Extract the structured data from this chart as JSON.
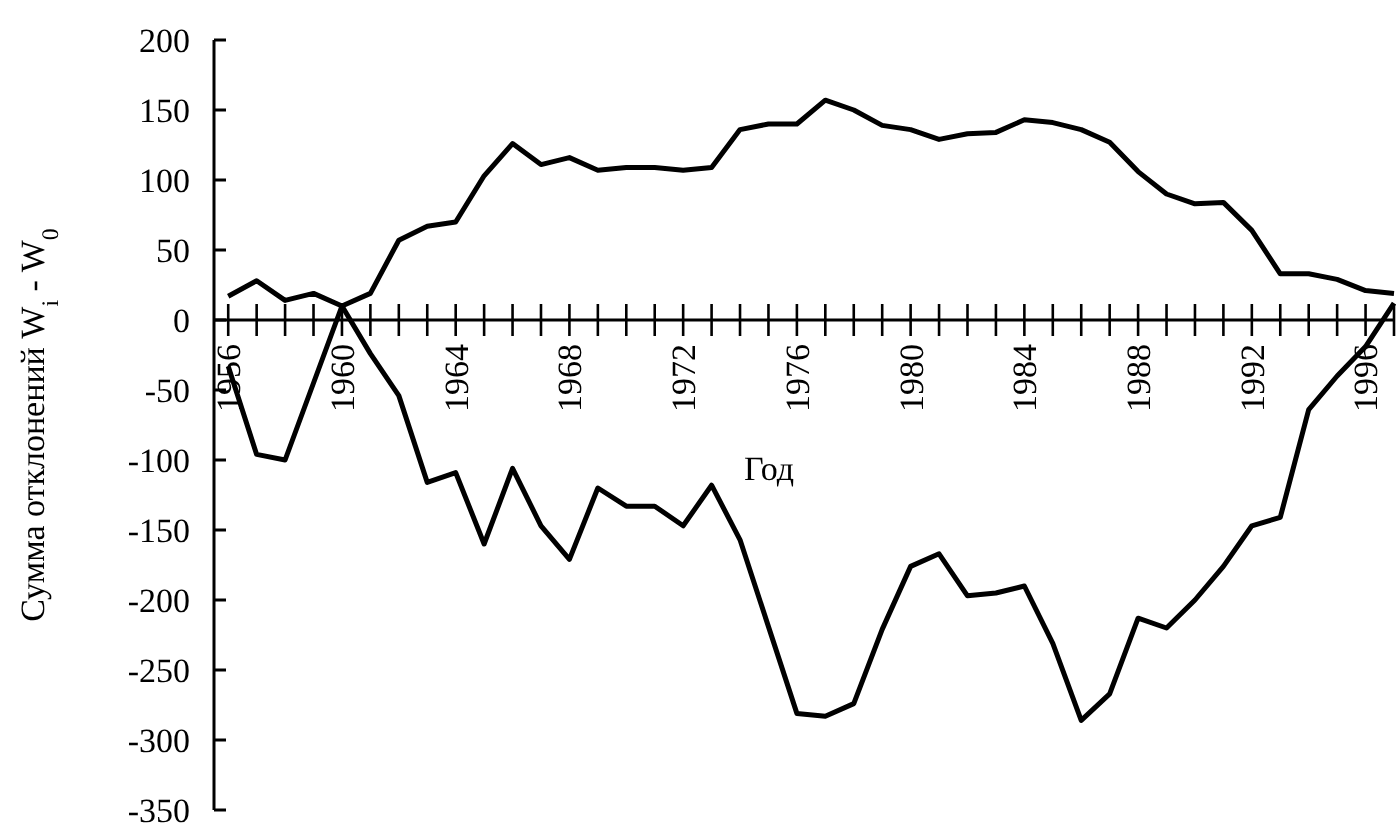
{
  "chart_data": {
    "type": "line",
    "xlabel": "Год",
    "ylabel": "Сумма отклонений W$_{i}$ - W$_{0}$",
    "x": [
      1956,
      1957,
      1958,
      1959,
      1960,
      1961,
      1962,
      1963,
      1964,
      1965,
      1966,
      1967,
      1968,
      1969,
      1970,
      1971,
      1972,
      1973,
      1974,
      1975,
      1976,
      1977,
      1978,
      1979,
      1980,
      1981,
      1982,
      1983,
      1984,
      1985,
      1986,
      1987,
      1988,
      1989,
      1990,
      1991,
      1992,
      1993,
      1994,
      1995,
      1996,
      1997
    ],
    "series": [
      {
        "color": "#000000",
        "values": [
          17,
          28,
          14,
          19,
          10,
          19,
          57,
          67,
          70,
          103,
          126,
          111,
          116,
          107,
          109,
          109,
          107,
          109,
          136,
          140,
          140,
          157,
          150,
          139,
          136,
          129,
          133,
          134,
          143,
          141,
          136,
          127,
          106,
          90,
          83,
          84,
          64,
          33,
          33,
          29,
          21,
          19
        ]
      },
      {
        "color": "#000000",
        "values": [
          -33,
          -96,
          -100,
          -45,
          10,
          -24,
          -54,
          -116,
          -109,
          -160,
          -106,
          -147,
          -171,
          -120,
          -133,
          -133,
          -147,
          -118,
          -157,
          -219,
          -281,
          -283,
          -274,
          -221,
          -176,
          -167,
          -197,
          -195,
          -190,
          -231,
          -286,
          -267,
          -213,
          -220,
          -200,
          -176,
          -147,
          -141,
          -64,
          -40,
          -19,
          12
        ]
      }
    ],
    "xlim": [
      1955.5,
      1997
    ],
    "xticks": [
      1956,
      {
        "value": 1957,
        "label": null
      },
      {
        "value": 1958,
        "label": null
      },
      {
        "value": 1959,
        "label": null
      },
      1960,
      {
        "value": 1961,
        "label": null
      },
      {
        "value": 1962,
        "label": null
      },
      {
        "value": 1963,
        "label": null
      },
      1964,
      {
        "value": 1965,
        "label": null
      },
      {
        "value": 1966,
        "label": null
      },
      {
        "value": 1967,
        "label": null
      },
      1968,
      {
        "value": 1969,
        "label": null
      },
      {
        "value": 1970,
        "label": null
      },
      {
        "value": 1971,
        "label": null
      },
      1972,
      {
        "value": 1973,
        "label": null
      },
      {
        "value": 1974,
        "label": null
      },
      {
        "value": 1975,
        "label": null
      },
      1976,
      {
        "value": 1977,
        "label": null
      },
      {
        "value": 1978,
        "label": null
      },
      {
        "value": 1979,
        "label": null
      },
      1980,
      {
        "value": 1981,
        "label": null
      },
      {
        "value": 1982,
        "label": null
      },
      {
        "value": 1983,
        "label": null
      },
      1984,
      {
        "value": 1985,
        "label": null
      },
      {
        "value": 1986,
        "label": null
      },
      {
        "value": 1987,
        "label": null
      },
      1988,
      {
        "value": 1989,
        "label": null
      },
      {
        "value": 1990,
        "label": null
      },
      {
        "value": 1991,
        "label": null
      },
      1992,
      {
        "value": 1993,
        "label": null
      },
      {
        "value": 1994,
        "label": null
      },
      {
        "value": 1995,
        "label": null
      },
      1996,
      {
        "value": 1997,
        "label": null
      }
    ],
    "ylim": [
      -350,
      200
    ],
    "yticks": [
      -350,
      -300,
      -250,
      -200,
      -150,
      -100,
      -50,
      0,
      50,
      100,
      150,
      200
    ],
    "grid": false,
    "legend": false,
    "marker": "none",
    "line_style": "solid"
  }
}
